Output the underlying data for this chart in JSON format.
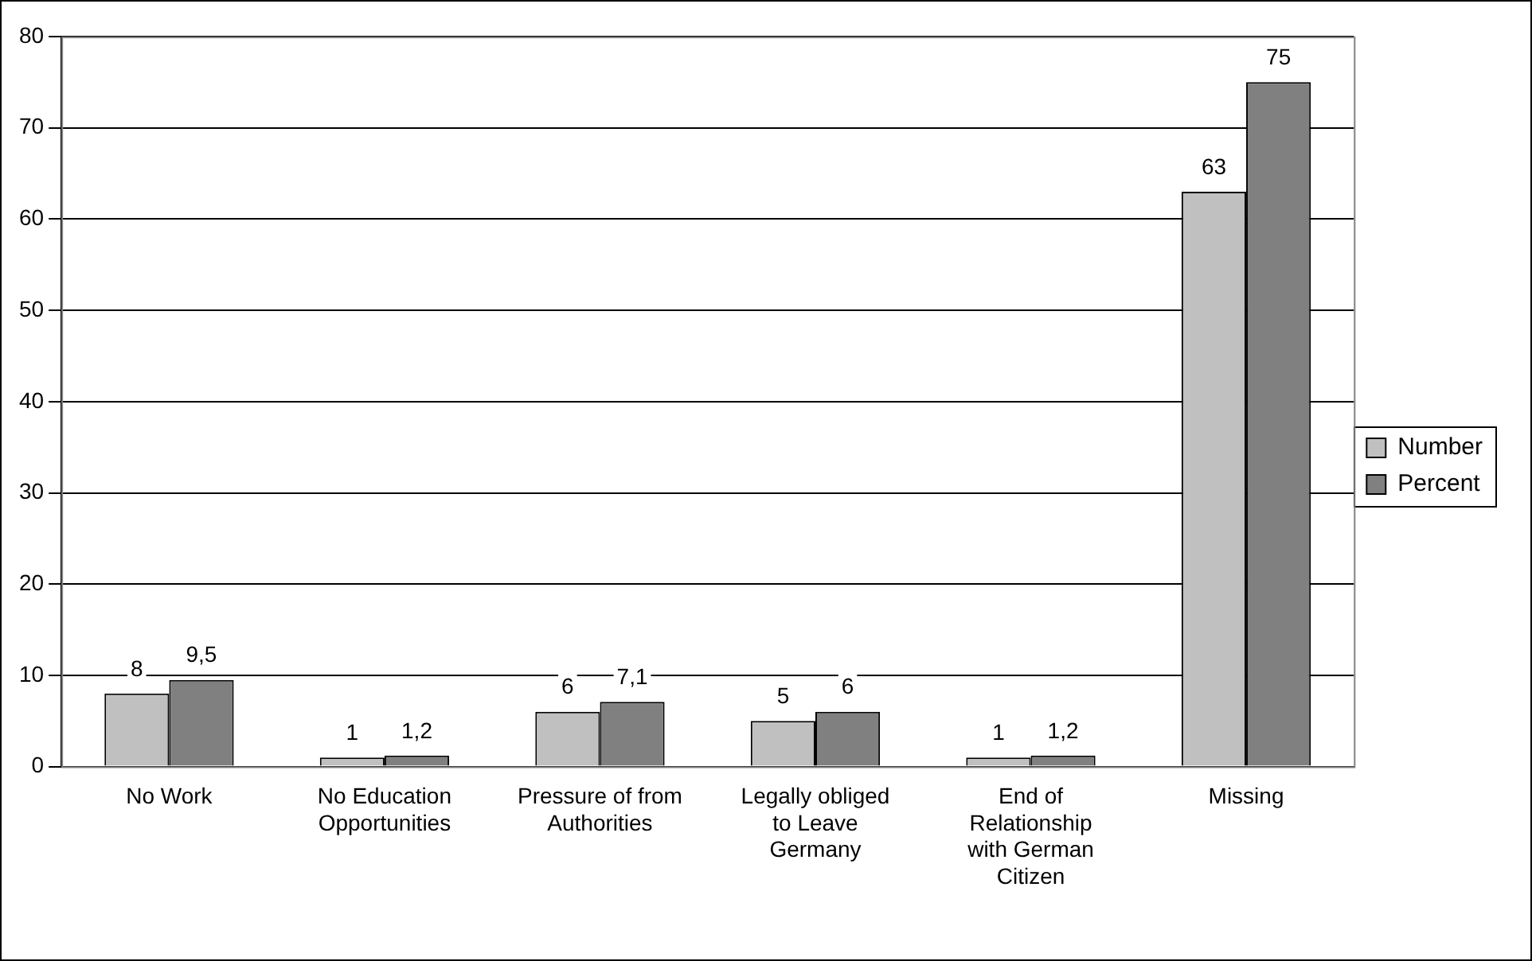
{
  "chart_data": {
    "type": "bar",
    "categories": [
      "No Work",
      "No Education Opportunities",
      "Pressure of from Authorities",
      "Legally obliged to Leave Germany",
      "End of Relationship with German Citizen",
      "Missing"
    ],
    "series": [
      {
        "name": "Number",
        "color": "#c0c0c0",
        "values": [
          8,
          1,
          6,
          5,
          1,
          63
        ],
        "value_labels": [
          "8",
          "1",
          "6",
          "5",
          "1",
          "63"
        ]
      },
      {
        "name": "Percent",
        "color": "#808080",
        "values": [
          9.5,
          1.2,
          7.1,
          6,
          1.2,
          75
        ],
        "value_labels": [
          "9,5",
          "1,2",
          "7,1",
          "6",
          "1,2",
          "75"
        ]
      }
    ],
    "ylim": [
      0,
      80
    ],
    "yticks": [
      0,
      10,
      20,
      30,
      40,
      50,
      60,
      70,
      80
    ],
    "grid": "y",
    "legend": "right"
  }
}
